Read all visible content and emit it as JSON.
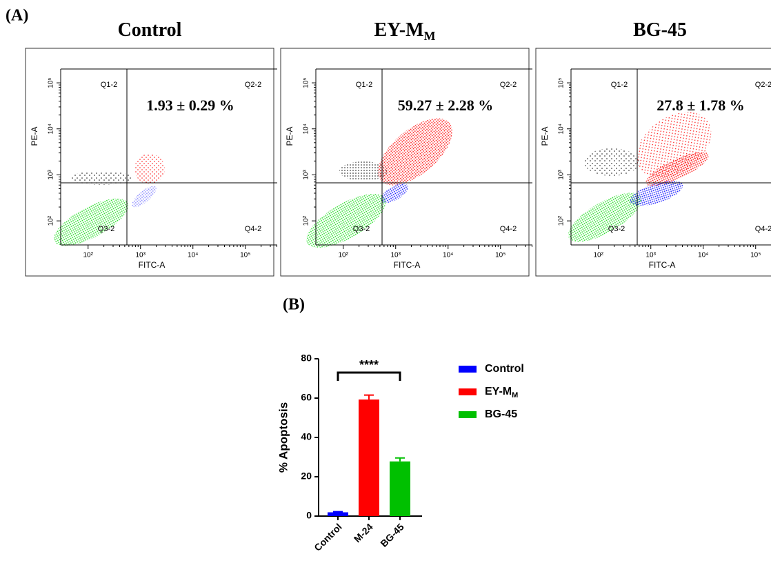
{
  "panel_labels": [
    "(A)",
    "(B)"
  ],
  "chart_data": [
    {
      "type": "scatter",
      "title": "Control",
      "x_label": "FITC-A",
      "y_label": "PE-A",
      "log_x": true,
      "log_y": true,
      "xlim": [
        30,
        300000
      ],
      "ylim": [
        30,
        200000
      ],
      "xticks": [
        {
          "value": 100,
          "label": "10²"
        },
        {
          "value": 1000,
          "label": "10³"
        },
        {
          "value": 10000,
          "label": "10⁴"
        },
        {
          "value": 100000,
          "label": "10⁵"
        }
      ],
      "yticks": [
        {
          "value": 100,
          "label": "10²"
        },
        {
          "value": 1000,
          "label": "10³"
        },
        {
          "value": 10000,
          "label": "10⁴"
        },
        {
          "value": 100000,
          "label": "10⁵"
        }
      ],
      "gates": {
        "x": 550,
        "y": 670
      },
      "quadrants": [
        "Q1-2",
        "Q2-2",
        "Q3-2",
        "Q4-2"
      ],
      "annotation": "1.93 ± 0.29 %"
    },
    {
      "type": "scatter",
      "title": "EY-M",
      "title_subscript": "M",
      "x_label": "FITC-A",
      "y_label": "PE-A",
      "log_x": true,
      "log_y": true,
      "xlim": [
        30,
        300000
      ],
      "ylim": [
        30,
        200000
      ],
      "xticks": [
        {
          "value": 100,
          "label": "10²"
        },
        {
          "value": 1000,
          "label": "10³"
        },
        {
          "value": 10000,
          "label": "10⁴"
        },
        {
          "value": 100000,
          "label": "10⁵"
        }
      ],
      "yticks": [
        {
          "value": 100,
          "label": "10²"
        },
        {
          "value": 1000,
          "label": "10³"
        },
        {
          "value": 10000,
          "label": "10⁴"
        },
        {
          "value": 100000,
          "label": "10⁵"
        }
      ],
      "gates": {
        "x": 550,
        "y": 670
      },
      "quadrants": [
        "Q1-2",
        "Q2-2",
        "Q3-2",
        "Q4-2"
      ],
      "annotation": "59.27 ± 2.28 %"
    },
    {
      "type": "scatter",
      "title": "BG-45",
      "x_label": "FITC-A",
      "y_label": "PE-A",
      "log_x": true,
      "log_y": true,
      "xlim": [
        30,
        300000
      ],
      "ylim": [
        30,
        200000
      ],
      "xticks": [
        {
          "value": 100,
          "label": "10²"
        },
        {
          "value": 1000,
          "label": "10³"
        },
        {
          "value": 10000,
          "label": "10⁴"
        },
        {
          "value": 100000,
          "label": "10⁵"
        }
      ],
      "yticks": [
        {
          "value": 100,
          "label": "10²"
        },
        {
          "value": 1000,
          "label": "10³"
        },
        {
          "value": 10000,
          "label": "10⁴"
        },
        {
          "value": 100000,
          "label": "10⁵"
        }
      ],
      "gates": {
        "x": 550,
        "y": 670
      },
      "quadrants": [
        "Q1-2",
        "Q2-2",
        "Q3-2",
        "Q4-2"
      ],
      "annotation": "27.8 ± 1.78 %"
    },
    {
      "type": "bar",
      "y_label": "% Apoptosis",
      "categories": [
        "Control",
        "M-24",
        "BG-45"
      ],
      "values": [
        1.93,
        59.27,
        27.8
      ],
      "errors": [
        0.29,
        2.28,
        1.78
      ],
      "colors": [
        "#0000ff",
        "#ff0000",
        "#00c000"
      ],
      "ylim": [
        0,
        80
      ],
      "yticks": [
        0,
        20,
        40,
        60,
        80
      ],
      "annotation": "****",
      "legend": [
        {
          "name": "Control",
          "color": "#0000ff"
        },
        {
          "name": "EY-M",
          "subscript": "M",
          "color": "#ff0000"
        },
        {
          "name": "BG-45",
          "color": "#00c000"
        }
      ]
    }
  ]
}
